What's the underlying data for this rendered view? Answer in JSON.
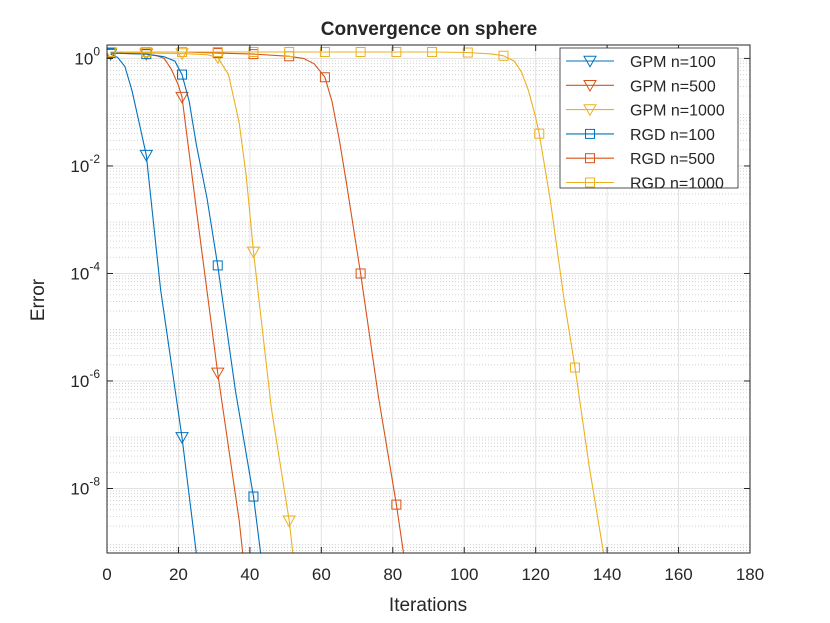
{
  "chart_data": {
    "type": "line",
    "title": "Convergence on sphere",
    "xlabel": "Iterations",
    "ylabel": "Error",
    "xlim": [
      0,
      180
    ],
    "ylim_log10": [
      -9.2,
      0.25
    ],
    "y_scale": "log",
    "grid": true,
    "legend_position": "top-right",
    "x_ticks": [
      0,
      20,
      40,
      60,
      80,
      100,
      120,
      140,
      160,
      180
    ],
    "y_ticks": [
      {
        "base": "10",
        "exp": "0",
        "log10": 0
      },
      {
        "base": "10",
        "exp": "-2",
        "log10": -2
      },
      {
        "base": "10",
        "exp": "-4",
        "log10": -4
      },
      {
        "base": "10",
        "exp": "-6",
        "log10": -6
      },
      {
        "base": "10",
        "exp": "-8",
        "log10": -8
      }
    ],
    "series": [
      {
        "name": "GPM n=100",
        "color": "#0072BD",
        "marker": "triangle-down",
        "line": [
          [
            1,
            0.08
          ],
          [
            3,
            0.02
          ],
          [
            5,
            -0.15
          ],
          [
            7,
            -0.6
          ],
          [
            9,
            -1.2
          ],
          [
            11,
            -1.8
          ],
          [
            15,
            -4.3
          ],
          [
            21,
            -7.05
          ],
          [
            25,
            -9.2
          ]
        ],
        "markers": [
          [
            1,
            0.08
          ],
          [
            11,
            -1.8
          ],
          [
            21,
            -7.05
          ]
        ]
      },
      {
        "name": "GPM n=500",
        "color": "#D95319",
        "marker": "triangle-down",
        "line": [
          [
            1,
            0.1
          ],
          [
            11,
            0.08
          ],
          [
            14,
            0.05
          ],
          [
            16,
            0.0
          ],
          [
            18,
            -0.2
          ],
          [
            20,
            -0.5
          ],
          [
            21,
            -0.72
          ],
          [
            25,
            -2.8
          ],
          [
            31,
            -5.85
          ],
          [
            37,
            -8.6
          ],
          [
            38,
            -9.2
          ]
        ],
        "markers": [
          [
            1,
            0.1
          ],
          [
            11,
            0.08
          ],
          [
            21,
            -0.72
          ],
          [
            31,
            -5.85
          ]
        ]
      },
      {
        "name": "GPM n=1000",
        "color": "#EDB120",
        "marker": "triangle-down",
        "line": [
          [
            1,
            0.1
          ],
          [
            11,
            0.1
          ],
          [
            21,
            0.09
          ],
          [
            28,
            0.07
          ],
          [
            31,
            0.02
          ],
          [
            34,
            -0.3
          ],
          [
            37,
            -1.2
          ],
          [
            39,
            -2.2
          ],
          [
            41,
            -3.6
          ],
          [
            46,
            -6.5
          ],
          [
            51,
            -8.6
          ],
          [
            52,
            -9.2
          ]
        ],
        "markers": [
          [
            1,
            0.1
          ],
          [
            11,
            0.1
          ],
          [
            21,
            0.09
          ],
          [
            31,
            0.02
          ],
          [
            41,
            -3.6
          ],
          [
            51,
            -8.6
          ]
        ]
      },
      {
        "name": "RGD n=100",
        "color": "#0072BD",
        "marker": "square",
        "line": [
          [
            1,
            0.1
          ],
          [
            11,
            0.08
          ],
          [
            16,
            0.03
          ],
          [
            19,
            -0.05
          ],
          [
            21,
            -0.3
          ],
          [
            23,
            -0.8
          ],
          [
            25,
            -1.6
          ],
          [
            28,
            -2.6
          ],
          [
            31,
            -3.85
          ],
          [
            36,
            -6.2
          ],
          [
            41,
            -8.15
          ],
          [
            43,
            -9.2
          ]
        ],
        "markers": [
          [
            1,
            0.1
          ],
          [
            11,
            0.08
          ],
          [
            21,
            -0.3
          ],
          [
            31,
            -3.85
          ],
          [
            41,
            -8.15
          ]
        ]
      },
      {
        "name": "RGD n=500",
        "color": "#D95319",
        "marker": "square",
        "line": [
          [
            1,
            0.12
          ],
          [
            11,
            0.12
          ],
          [
            21,
            0.12
          ],
          [
            31,
            0.1
          ],
          [
            41,
            0.08
          ],
          [
            51,
            0.04
          ],
          [
            55,
            0.0
          ],
          [
            58,
            -0.1
          ],
          [
            61,
            -0.35
          ],
          [
            63,
            -0.8
          ],
          [
            65,
            -1.5
          ],
          [
            67,
            -2.3
          ],
          [
            71,
            -4.0
          ],
          [
            76,
            -6.3
          ],
          [
            81,
            -8.3
          ],
          [
            83,
            -9.2
          ]
        ],
        "markers": [
          [
            1,
            0.12
          ],
          [
            11,
            0.12
          ],
          [
            21,
            0.12
          ],
          [
            31,
            0.1
          ],
          [
            41,
            0.08
          ],
          [
            51,
            0.04
          ],
          [
            61,
            -0.35
          ],
          [
            71,
            -4.0
          ],
          [
            81,
            -8.3
          ]
        ]
      },
      {
        "name": "RGD n=1000",
        "color": "#EDB120",
        "marker": "square",
        "line": [
          [
            1,
            0.12
          ],
          [
            21,
            0.12
          ],
          [
            41,
            0.12
          ],
          [
            61,
            0.12
          ],
          [
            81,
            0.12
          ],
          [
            91,
            0.12
          ],
          [
            101,
            0.11
          ],
          [
            108,
            0.08
          ],
          [
            111,
            0.05
          ],
          [
            114,
            -0.05
          ],
          [
            116,
            -0.25
          ],
          [
            118,
            -0.6
          ],
          [
            120,
            -1.1
          ],
          [
            121,
            -1.4
          ],
          [
            124,
            -2.6
          ],
          [
            128,
            -4.5
          ],
          [
            131,
            -5.75
          ],
          [
            135,
            -7.6
          ],
          [
            138,
            -8.8
          ],
          [
            139,
            -9.2
          ]
        ],
        "markers": [
          [
            1,
            0.12
          ],
          [
            11,
            0.12
          ],
          [
            21,
            0.12
          ],
          [
            31,
            0.12
          ],
          [
            41,
            0.12
          ],
          [
            51,
            0.12
          ],
          [
            61,
            0.12
          ],
          [
            71,
            0.12
          ],
          [
            81,
            0.12
          ],
          [
            91,
            0.12
          ],
          [
            101,
            0.11
          ],
          [
            111,
            0.05
          ],
          [
            121,
            -1.4
          ],
          [
            131,
            -5.75
          ]
        ]
      }
    ]
  }
}
